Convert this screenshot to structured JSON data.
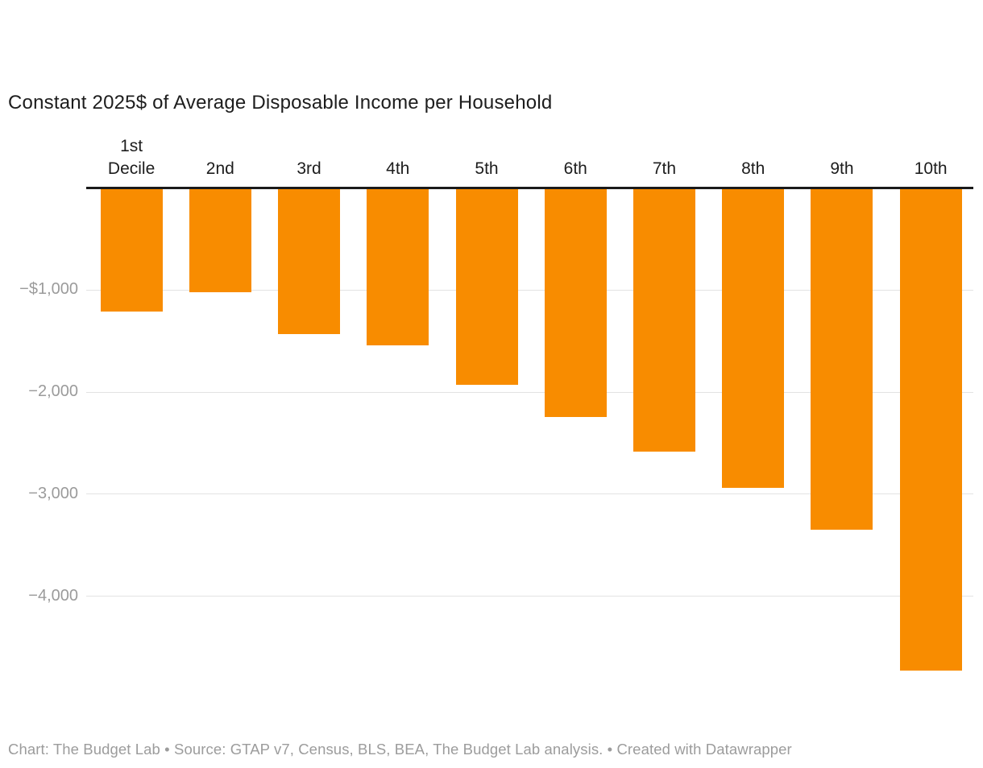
{
  "header": {
    "title": "Constant 2025$ of Average Disposable Income per Household"
  },
  "footer": {
    "text": "Chart: The Budget Lab • Source: GTAP v7, Census, BLS, BEA, The Budget Lab analysis. • Created with Datawrapper"
  },
  "colors": {
    "bar": "#F88C00",
    "axis_line": "#1A1A1A",
    "gridline": "#E3E3E3",
    "tick_label": "#9B9B9B",
    "category_label": "#1D1D1D",
    "title": "#1D1D1D",
    "footer": "#9C9C9C",
    "background": "#FFFFFF"
  },
  "chart_data": {
    "type": "bar",
    "title": "Constant 2025$ of Average Disposable Income per Household",
    "categories": [
      "1st Decile",
      "2nd",
      "3rd",
      "4th",
      "5th",
      "6th",
      "7th",
      "8th",
      "9th",
      "10th"
    ],
    "values": [
      -1210,
      -1020,
      -1430,
      -1540,
      -1930,
      -2240,
      -2580,
      -2940,
      -3350,
      -4730
    ],
    "xlabel": "",
    "ylabel": "",
    "ylim": [
      -4800,
      0
    ],
    "yticks": [
      {
        "value": -1000,
        "label": "−$1,000"
      },
      {
        "value": -2000,
        "label": "−2,000"
      },
      {
        "value": -3000,
        "label": "−3,000"
      },
      {
        "value": -4000,
        "label": "−4,000"
      }
    ],
    "grid": true,
    "legend_position": "none",
    "bar_color": "#F88C00",
    "orientation": "vertical-negative"
  }
}
